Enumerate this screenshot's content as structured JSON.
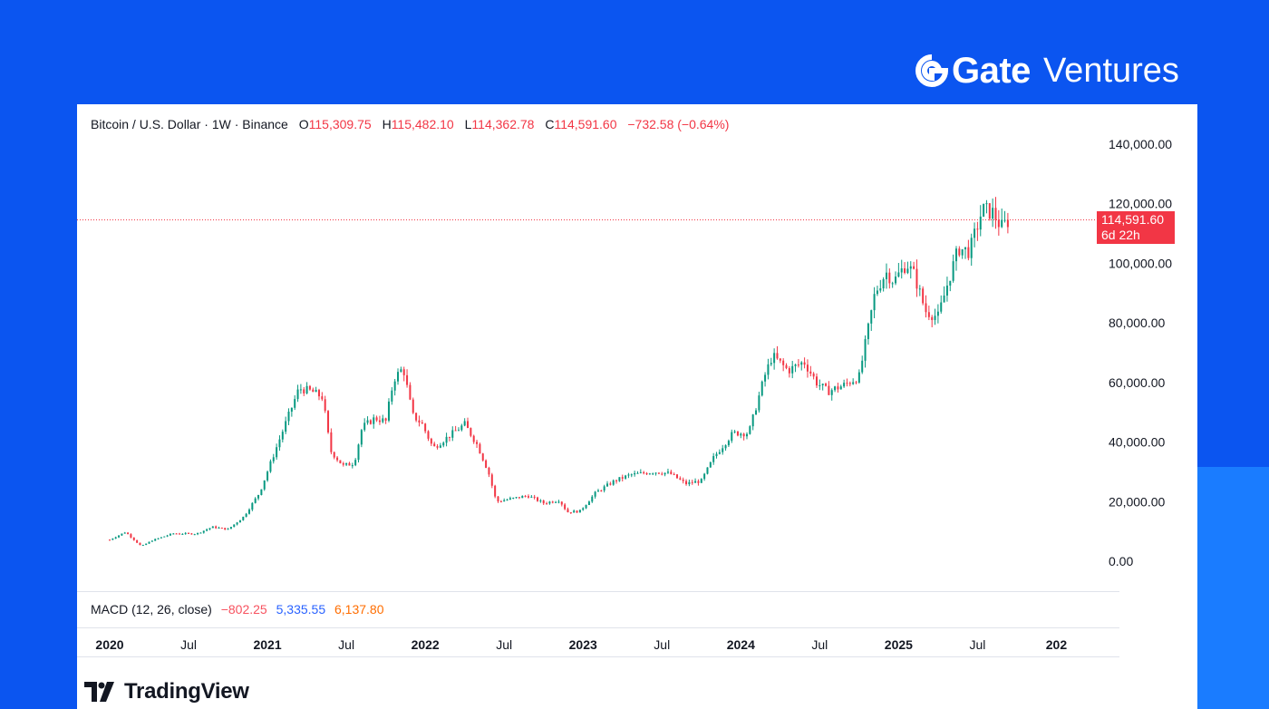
{
  "brand": {
    "name": "Gate",
    "sub": "Ventures"
  },
  "header": {
    "symbol": "Bitcoin / U.S. Dollar · 1W · Binance",
    "o_label": "O",
    "o_value": "115,309.75",
    "h_label": "H",
    "h_value": "115,482.10",
    "l_label": "L",
    "l_value": "114,362.78",
    "c_label": "C",
    "c_value": "114,591.60",
    "change": "−732.58 (−0.64%)"
  },
  "price_badge": {
    "price": "114,591.60",
    "countdown": "6d 22h"
  },
  "macd": {
    "label": "MACD (12, 26, close)",
    "v1": "−802.25",
    "v2": "5,335.55",
    "v3": "6,137.80"
  },
  "footer": {
    "logo_text": "TradingView"
  },
  "chart_data": {
    "type": "candlestick",
    "x_tick_labels": [
      "2020",
      "Jul",
      "2021",
      "Jul",
      "2022",
      "Jul",
      "2023",
      "Jul",
      "2024",
      "Jul",
      "2025",
      "Jul",
      "202"
    ],
    "y_tick_labels": [
      "140,000.00",
      "120,000.00",
      "100,000.00",
      "80,000.00",
      "60,000.00",
      "40,000.00",
      "20,000.00",
      "0.00"
    ],
    "y_ticks": [
      140000,
      120000,
      100000,
      80000,
      60000,
      40000,
      20000,
      0
    ],
    "ylim": [
      0,
      140000
    ],
    "xlim": [
      2020.0,
      2025.917
    ],
    "current_price": 114591.6,
    "colors": {
      "up": "#089981",
      "down": "#f23645"
    },
    "anchors": [
      [
        2020.0,
        7200
      ],
      [
        2020.1,
        9800
      ],
      [
        2020.2,
        5000
      ],
      [
        2020.27,
        7000
      ],
      [
        2020.4,
        9300
      ],
      [
        2020.55,
        9200
      ],
      [
        2020.65,
        11500
      ],
      [
        2020.75,
        10700
      ],
      [
        2020.85,
        15000
      ],
      [
        2020.95,
        23000
      ],
      [
        2021.02,
        33000
      ],
      [
        2021.12,
        47000
      ],
      [
        2021.2,
        58000
      ],
      [
        2021.28,
        57000
      ],
      [
        2021.35,
        55000
      ],
      [
        2021.4,
        37000
      ],
      [
        2021.48,
        32000
      ],
      [
        2021.55,
        33000
      ],
      [
        2021.6,
        45000
      ],
      [
        2021.68,
        48000
      ],
      [
        2021.75,
        47000
      ],
      [
        2021.8,
        61000
      ],
      [
        2021.86,
        65000
      ],
      [
        2021.92,
        49000
      ],
      [
        2021.98,
        46000
      ],
      [
        2022.05,
        38000
      ],
      [
        2022.15,
        42000
      ],
      [
        2022.25,
        46000
      ],
      [
        2022.33,
        39000
      ],
      [
        2022.4,
        30000
      ],
      [
        2022.45,
        20000
      ],
      [
        2022.55,
        21000
      ],
      [
        2022.65,
        22000
      ],
      [
        2022.75,
        19500
      ],
      [
        2022.85,
        20500
      ],
      [
        2022.9,
        16500
      ],
      [
        2022.98,
        16800
      ],
      [
        2023.08,
        23000
      ],
      [
        2023.2,
        27000
      ],
      [
        2023.3,
        29000
      ],
      [
        2023.45,
        30000
      ],
      [
        2023.55,
        29500
      ],
      [
        2023.65,
        26000
      ],
      [
        2023.75,
        27000
      ],
      [
        2023.83,
        35000
      ],
      [
        2023.95,
        43000
      ],
      [
        2024.05,
        43000
      ],
      [
        2024.15,
        62000
      ],
      [
        2024.2,
        69000
      ],
      [
        2024.3,
        64000
      ],
      [
        2024.4,
        67000
      ],
      [
        2024.48,
        60000
      ],
      [
        2024.55,
        57000
      ],
      [
        2024.65,
        59000
      ],
      [
        2024.75,
        62000
      ],
      [
        2024.85,
        90000
      ],
      [
        2024.92,
        97000
      ],
      [
        2024.97,
        94000
      ],
      [
        2025.05,
        100000
      ],
      [
        2025.1,
        96000
      ],
      [
        2025.17,
        84000
      ],
      [
        2025.25,
        82000
      ],
      [
        2025.32,
        95000
      ],
      [
        2025.38,
        105000
      ],
      [
        2025.45,
        104000
      ],
      [
        2025.53,
        118000
      ],
      [
        2025.6,
        117000
      ],
      [
        2025.65,
        112000
      ],
      [
        2025.7,
        114590
      ]
    ]
  }
}
